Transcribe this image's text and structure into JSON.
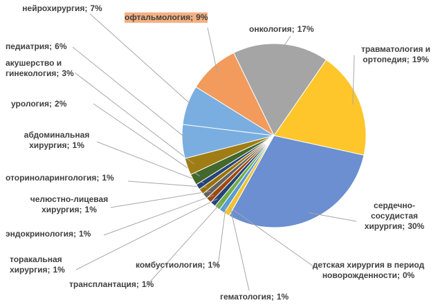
{
  "chart_data": {
    "type": "pie",
    "categories": [
      "онкология;",
      "травматология и ортопедия;",
      "сердечно-сосудистая хирургия;",
      "детская хирургия в период новорожденности;",
      "гематология;",
      "комбустиология;",
      "трансплантация;",
      "торакальная хирургия;",
      "эндокринология;",
      "челюстно-лицевая хирургия;",
      "оториноларингология;",
      "абдоминальная хирургия;",
      "урология;",
      "акушерство и гинекология;",
      "педиатрия;",
      "нейрохирургия;",
      "офтальмология;"
    ],
    "values": [
      17,
      19,
      30,
      0,
      1,
      1,
      1,
      1,
      1,
      1,
      1,
      1,
      2,
      3,
      6,
      7,
      9
    ],
    "value_labels": [
      "17%",
      "19%",
      "30%",
      "0%",
      "1%",
      "1%",
      "1%",
      "1%",
      "1%",
      "1%",
      "1%",
      "1%",
      "2%",
      "3%",
      "6%",
      "7%",
      "9%"
    ],
    "colors": [
      "#a5a5a5",
      "#ffc62b",
      "#6b8fd0",
      "#ed7d31",
      "#f2c230",
      "#5b9bd5",
      "#70ad47",
      "#264478",
      "#9e480e",
      "#636363",
      "#997300",
      "#264478",
      "#43682b",
      "#a07d14",
      "#7aaee0",
      "#7aaee0",
      "#f29b5c"
    ]
  }
}
